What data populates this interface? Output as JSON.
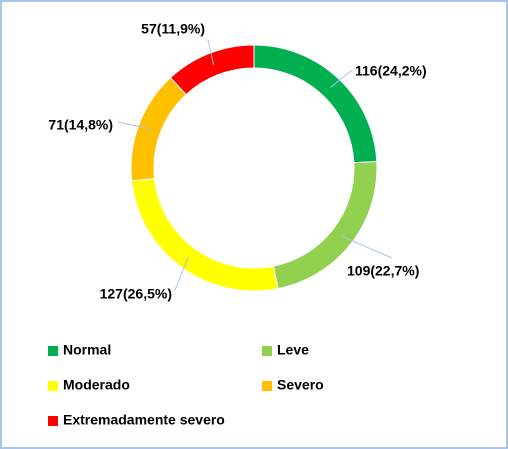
{
  "chart_data": {
    "type": "donut",
    "categories": [
      "Normal",
      "Leve",
      "Moderado",
      "Severo",
      "Extremadamente severo"
    ],
    "values": [
      116,
      109,
      127,
      71,
      57
    ],
    "value_labels": [
      "116(24,2%)",
      "109(22,7%)",
      "127(26,5%)",
      "71(14,8%)",
      "57(11,9%)"
    ],
    "colors": [
      "#00b050",
      "#92d050",
      "#ffff00",
      "#ffc000",
      "#ff0000"
    ],
    "legend": "bottom"
  }
}
